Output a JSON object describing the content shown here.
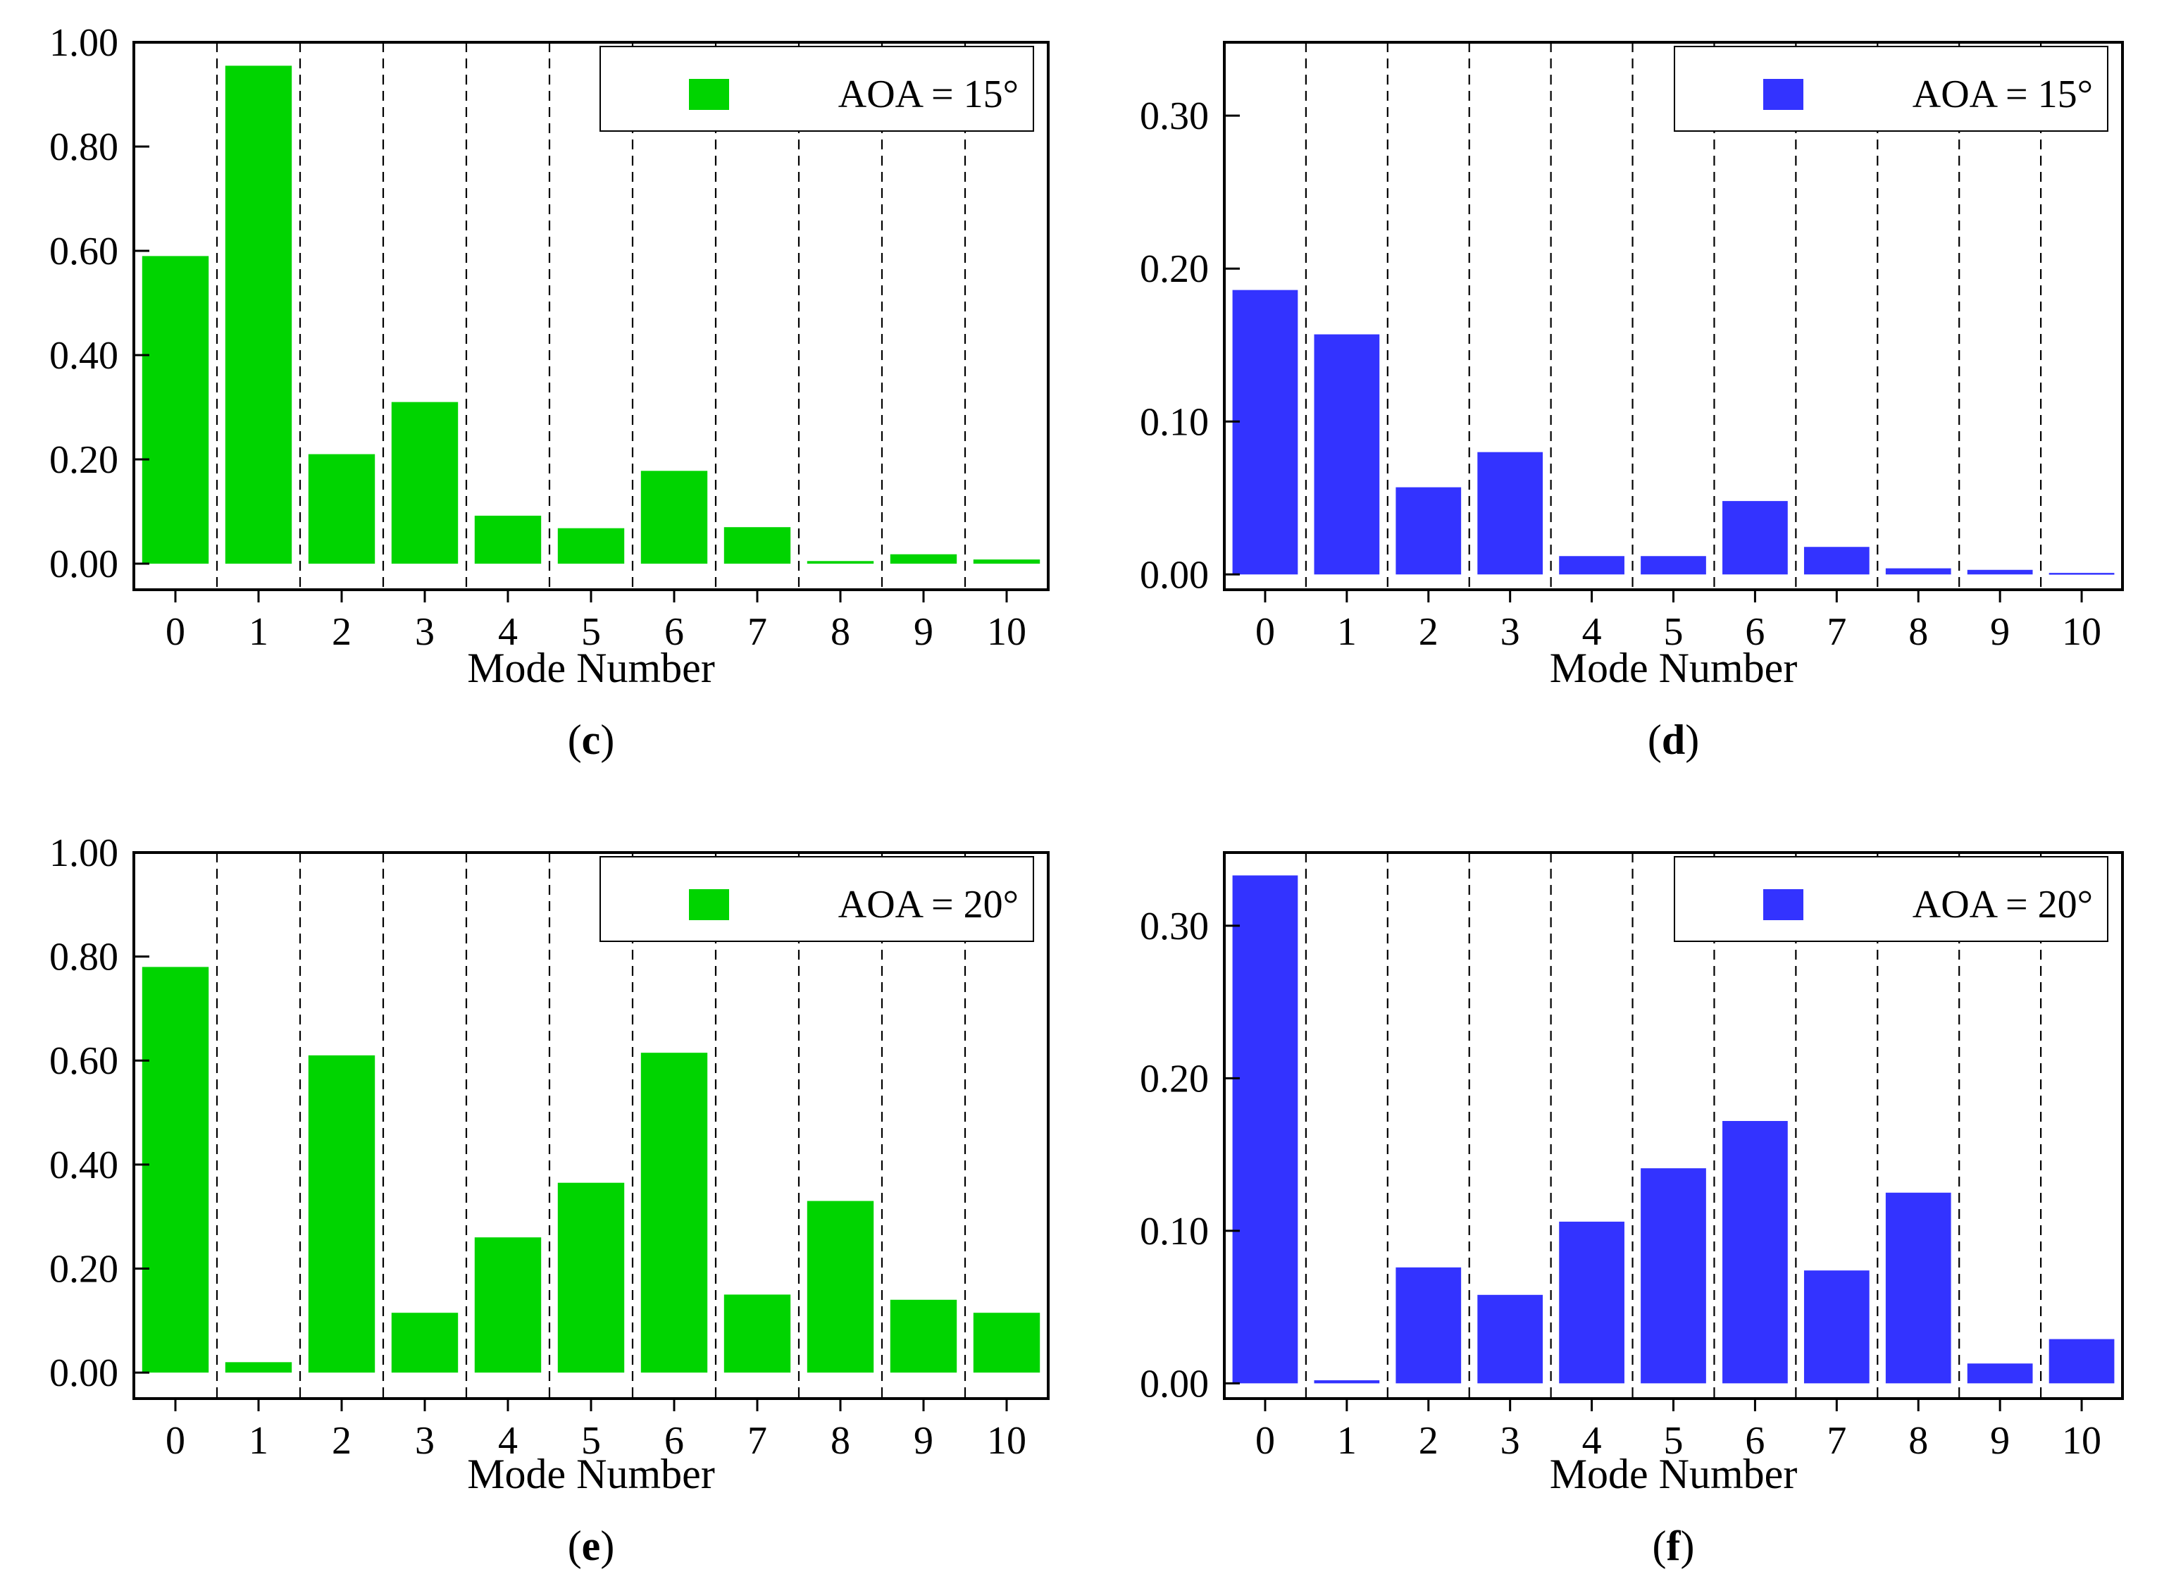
{
  "figure": {
    "panels": [
      "c",
      "d",
      "e",
      "f"
    ]
  },
  "chart_data": [
    {
      "id": "c",
      "type": "bar",
      "panel_label": "c",
      "categories": [
        "0",
        "1",
        "2",
        "3",
        "4",
        "5",
        "6",
        "7",
        "8",
        "9",
        "10"
      ],
      "values": [
        0.59,
        0.955,
        0.21,
        0.31,
        0.092,
        0.068,
        0.178,
        0.07,
        0.005,
        0.018,
        0.008
      ],
      "xlabel": "Mode Number",
      "ylabel": "",
      "ylim": [
        -0.05,
        1.0
      ],
      "yticks": [
        0.0,
        0.2,
        0.4,
        0.6,
        0.8,
        1.0
      ],
      "ytick_labels": [
        "0.00",
        "0.20",
        "0.40",
        "0.60",
        "0.80",
        "1.00"
      ],
      "legend": "AOA = 15°",
      "legend_position": "top-right",
      "color": "#00d400"
    },
    {
      "id": "d",
      "type": "bar",
      "panel_label": "d",
      "categories": [
        "0",
        "1",
        "2",
        "3",
        "4",
        "5",
        "6",
        "7",
        "8",
        "9",
        "10"
      ],
      "values": [
        0.186,
        0.157,
        0.057,
        0.08,
        0.012,
        0.012,
        0.048,
        0.018,
        0.004,
        0.003,
        0.001
      ],
      "xlabel": "Mode Number",
      "ylabel": "",
      "ylim": [
        -0.01,
        0.348
      ],
      "yticks": [
        0.0,
        0.1,
        0.2,
        0.3
      ],
      "ytick_labels": [
        "0.00",
        "0.10",
        "0.20",
        "0.30"
      ],
      "legend": "AOA = 15°",
      "legend_position": "top-right",
      "color": "#3333ff"
    },
    {
      "id": "e",
      "type": "bar",
      "panel_label": "e",
      "categories": [
        "0",
        "1",
        "2",
        "3",
        "4",
        "5",
        "6",
        "7",
        "8",
        "9",
        "10"
      ],
      "values": [
        0.78,
        0.02,
        0.61,
        0.115,
        0.26,
        0.365,
        0.615,
        0.15,
        0.33,
        0.14,
        0.115
      ],
      "xlabel": "Mode Number",
      "ylabel": "",
      "ylim": [
        -0.05,
        1.0
      ],
      "yticks": [
        0.0,
        0.2,
        0.4,
        0.6,
        0.8,
        1.0
      ],
      "ytick_labels": [
        "0.00",
        "0.20",
        "0.40",
        "0.60",
        "0.80",
        "1.00"
      ],
      "legend": "AOA = 20°",
      "legend_position": "top-right",
      "color": "#00d400"
    },
    {
      "id": "f",
      "type": "bar",
      "panel_label": "f",
      "categories": [
        "0",
        "1",
        "2",
        "3",
        "4",
        "5",
        "6",
        "7",
        "8",
        "9",
        "10"
      ],
      "values": [
        0.333,
        0.002,
        0.076,
        0.058,
        0.106,
        0.141,
        0.172,
        0.074,
        0.125,
        0.013,
        0.029
      ],
      "xlabel": "Mode Number",
      "ylabel": "",
      "ylim": [
        -0.01,
        0.348
      ],
      "yticks": [
        0.0,
        0.1,
        0.2,
        0.3
      ],
      "ytick_labels": [
        "0.00",
        "0.10",
        "0.20",
        "0.30"
      ],
      "legend": "AOA = 20°",
      "legend_position": "top-right",
      "color": "#3333ff"
    }
  ]
}
